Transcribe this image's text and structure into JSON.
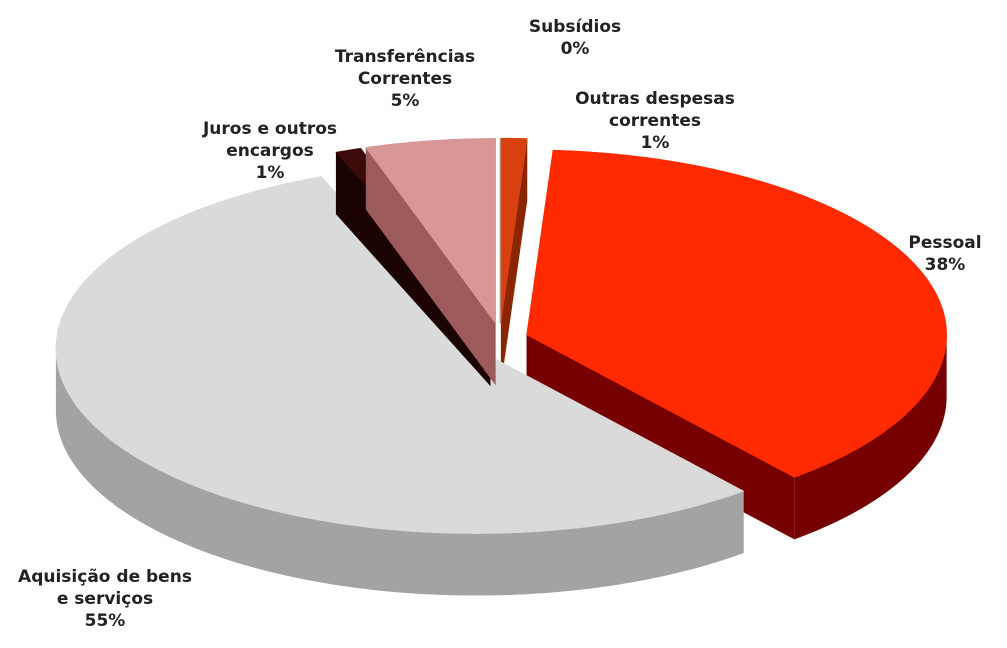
{
  "chart_data": {
    "type": "pie",
    "categories": [
      "Outras despesas correntes",
      "Pessoal",
      "Aquisição de bens e serviços",
      "Juros e outros encargos",
      "Transferências Correntes",
      "Subsídios"
    ],
    "values": [
      1,
      38,
      55,
      1,
      5,
      0
    ],
    "value_labels": [
      "1%",
      "38%",
      "55%",
      "1%",
      "5%",
      "0%"
    ],
    "colors": [
      "#d9400f",
      "#ff2a00",
      "#dadada",
      "#3b0b0b",
      "#d99696",
      "#4aa3b3"
    ],
    "side_colors": [
      "#8a2500",
      "#760000",
      "#a3a3a3",
      "#1c0303",
      "#9c5a5a",
      "#2c6c78"
    ]
  }
}
